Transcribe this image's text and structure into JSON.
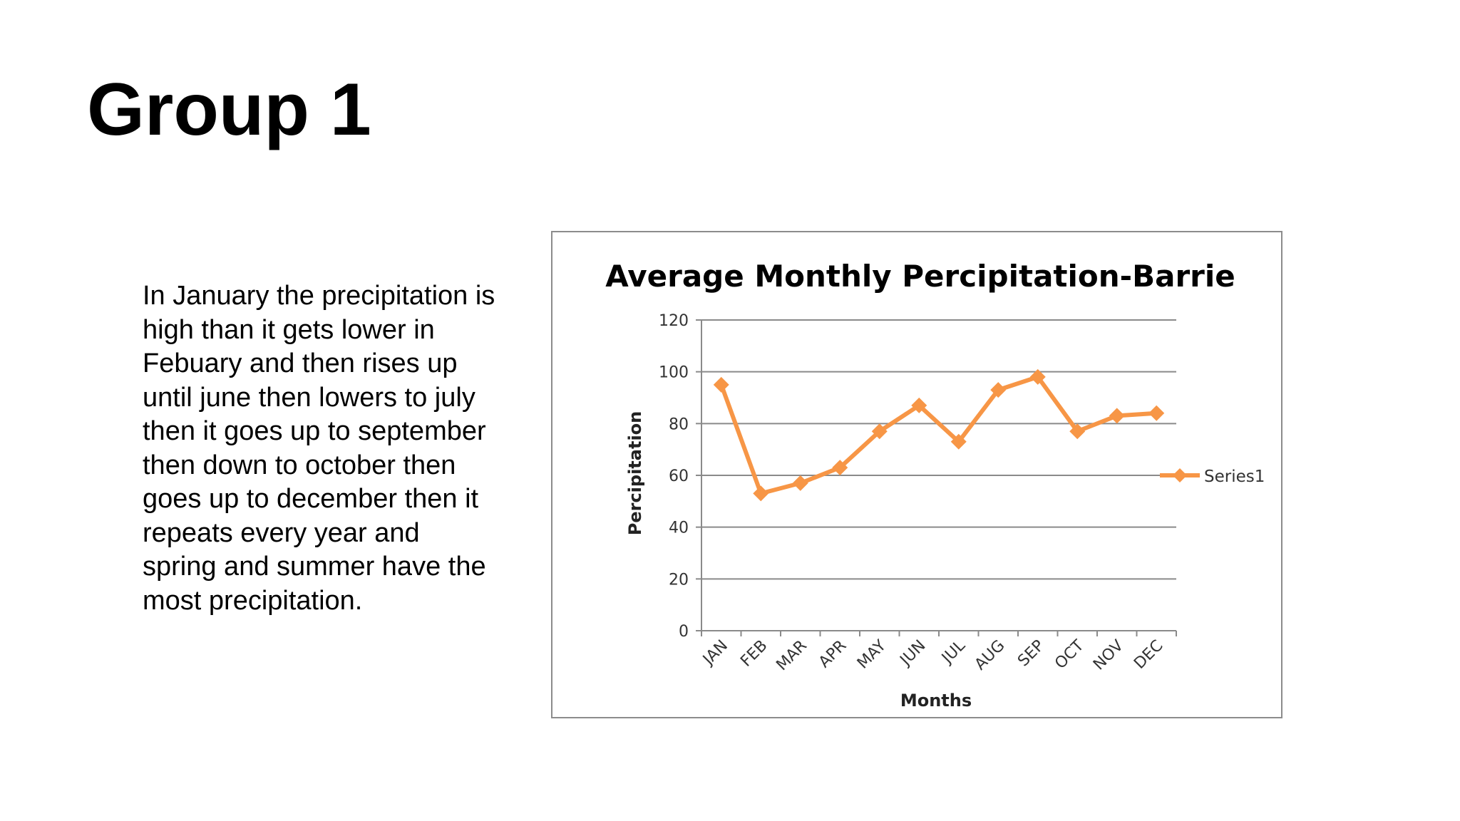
{
  "slide": {
    "title": "Group 1",
    "body": "In January the precipitation is high than it gets lower in Febuary and then rises up until june then lowers to july then it goes up to september then down to october then goes up to december then it repeats  every year and spring and summer have the most precipitation."
  },
  "chart_data": {
    "type": "line",
    "title": "Average Monthly Percipitation-Barrie",
    "xlabel": "Months",
    "ylabel": "Percipitation",
    "categories": [
      "JAN",
      "FEB",
      "MAR",
      "APR",
      "MAY",
      "JUN",
      "JUL",
      "AUG",
      "SEP",
      "OCT",
      "NOV",
      "DEC"
    ],
    "series": [
      {
        "name": "Series1",
        "values": [
          95,
          53,
          57,
          63,
          77,
          87,
          73,
          93,
          98,
          77,
          83,
          84
        ],
        "color": "#F79646"
      }
    ],
    "ylim": [
      0,
      120
    ],
    "yticks": [
      0,
      20,
      40,
      60,
      80,
      100,
      120
    ],
    "grid": true,
    "legend": "right"
  }
}
